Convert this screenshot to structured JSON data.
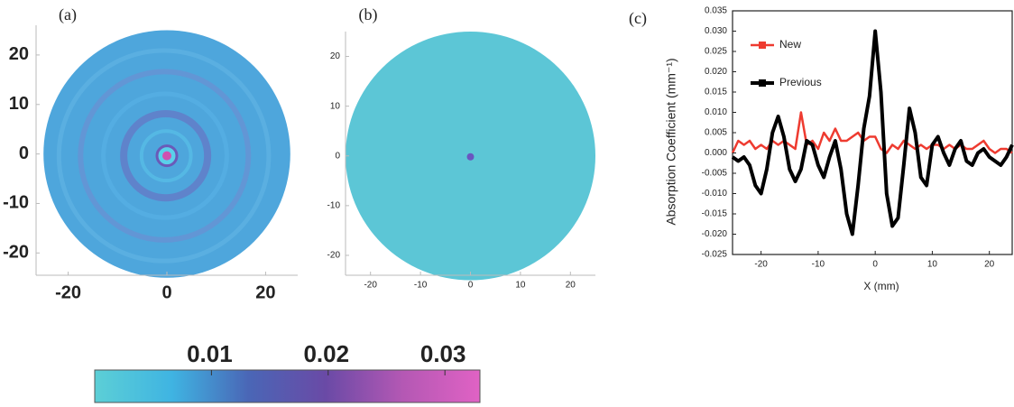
{
  "chart_data": [
    {
      "type": "image",
      "label": "(a)",
      "xlim": [
        -26.5,
        26.5
      ],
      "ylim": [
        -24.5,
        26
      ],
      "xticks": [
        -20,
        0,
        20
      ],
      "yticks": [
        -20,
        -10,
        0,
        10,
        20
      ],
      "disk_radius": 25,
      "color": "#4ea6dc"
    },
    {
      "type": "image",
      "label": "(b)",
      "xlim": [
        -25,
        25
      ],
      "ylim": [
        -24,
        25
      ],
      "xticks": [
        -20,
        -10,
        0,
        10,
        20
      ],
      "yticks": [
        -20,
        -10,
        0,
        10,
        20
      ],
      "disk_radius": 25,
      "color": "#5cc6d6"
    },
    {
      "type": "line",
      "label": "(c)",
      "xlabel": "X (mm)",
      "ylabel": "Absorption Coefficient  (mm⁻¹)",
      "xlim": [
        -25,
        24
      ],
      "ylim": [
        -0.025,
        0.035
      ],
      "xticks": [
        -20,
        -10,
        0,
        10,
        20
      ],
      "yticks": [
        -0.025,
        {
          "value": -0.02,
          "label": "-0.020"
        },
        -0.015,
        {
          "value": -0.01,
          "label": "-0.010"
        },
        -0.005,
        {
          "value": 0,
          "label": "0.000"
        },
        0.005,
        {
          "value": 0.01,
          "label": "0.010"
        },
        0.015,
        {
          "value": 0.02,
          "label": "0.020"
        },
        0.025,
        {
          "value": 0.03,
          "label": "0.030"
        },
        0.035
      ],
      "legend": "upper-left",
      "x": [
        -25,
        -24,
        -23,
        -22,
        -21,
        -20,
        -19,
        -18,
        -17,
        -16,
        -15,
        -14,
        -13,
        -12,
        -11,
        -10,
        -9,
        -8,
        -7,
        -6,
        -5,
        -4,
        -3,
        -2,
        -1,
        0,
        1,
        2,
        3,
        4,
        5,
        6,
        7,
        8,
        9,
        10,
        11,
        12,
        13,
        14,
        15,
        16,
        17,
        18,
        19,
        20,
        21,
        22,
        23,
        24
      ],
      "series": [
        {
          "name": "New",
          "color": "#ee3b30",
          "values": [
            0.0,
            0.003,
            0.002,
            0.003,
            0.001,
            0.002,
            0.001,
            0.003,
            0.002,
            0.003,
            0.002,
            0.001,
            0.01,
            0.002,
            0.003,
            0.001,
            0.005,
            0.003,
            0.006,
            0.003,
            0.003,
            0.004,
            0.005,
            0.003,
            0.004,
            0.004,
            0.001,
            0.0,
            0.002,
            0.001,
            0.003,
            0.002,
            0.001,
            0.002,
            0.001,
            0.002,
            0.002,
            0.001,
            0.002,
            0.001,
            0.002,
            0.001,
            0.001,
            0.002,
            0.003,
            0.001,
            0.0,
            0.001,
            0.001,
            0.0
          ]
        },
        {
          "name": "Previous",
          "color": "#000000",
          "values": [
            -0.001,
            -0.002,
            -0.001,
            -0.003,
            -0.008,
            -0.01,
            -0.004,
            0.005,
            0.009,
            0.004,
            -0.004,
            -0.007,
            -0.004,
            0.003,
            0.002,
            -0.003,
            -0.006,
            -0.001,
            0.003,
            -0.004,
            -0.015,
            -0.02,
            -0.008,
            0.006,
            0.014,
            0.03,
            0.015,
            -0.01,
            -0.018,
            -0.016,
            -0.003,
            0.011,
            0.005,
            -0.006,
            -0.008,
            0.002,
            0.004,
            0.0,
            -0.003,
            0.001,
            0.003,
            -0.002,
            -0.003,
            0.0,
            0.001,
            -0.001,
            -0.002,
            -0.003,
            -0.001,
            0.002
          ]
        }
      ]
    },
    {
      "type": "colorbar",
      "xlim": [
        0,
        0.033
      ],
      "xticks": [
        0.01,
        0.02,
        0.03
      ],
      "colors": [
        "#5ccfd6",
        "#3fb4e2",
        "#4a66b6",
        "#6a4aa6",
        "#b458b4",
        "#e062c4"
      ]
    }
  ]
}
